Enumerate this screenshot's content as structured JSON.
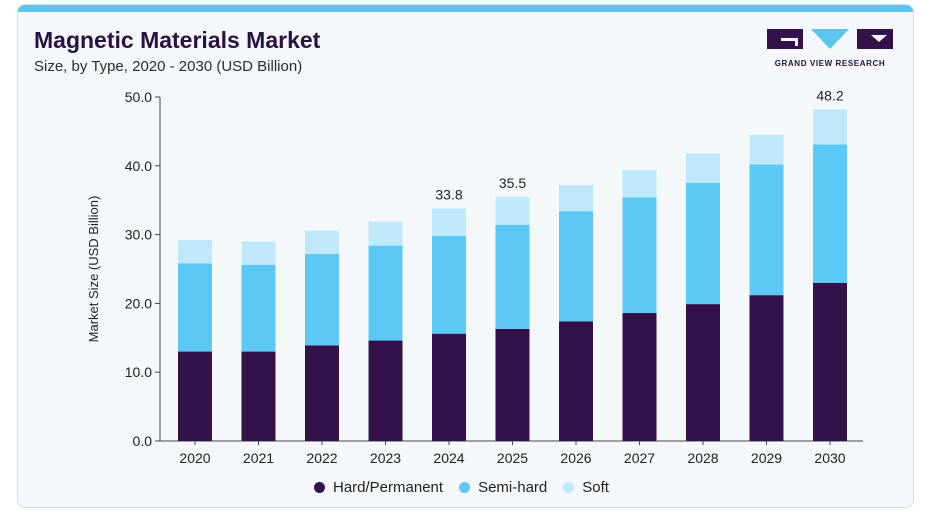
{
  "header": {
    "title": "Magnetic Materials Market",
    "subtitle": "Size, by Type, 2020 - 2030 (USD Billion)",
    "logo_text": "GRAND VIEW RESEARCH"
  },
  "colors": {
    "hard": "#33114b",
    "semi": "#5bc8f5",
    "soft": "#bfe8fb",
    "accent": "#5bc4ef"
  },
  "chart_data": {
    "type": "bar",
    "stacked": true,
    "categories": [
      "2020",
      "2021",
      "2022",
      "2023",
      "2024",
      "2025",
      "2026",
      "2027",
      "2028",
      "2029",
      "2030"
    ],
    "series": [
      {
        "name": "Hard/Permanent",
        "values": [
          13.0,
          13.0,
          13.9,
          14.6,
          15.6,
          16.3,
          17.4,
          18.6,
          19.9,
          21.2,
          23.0
        ]
      },
      {
        "name": "Semi-hard",
        "values": [
          12.8,
          12.6,
          13.3,
          13.8,
          14.2,
          15.1,
          16.0,
          16.8,
          17.6,
          19.0,
          20.1
        ]
      },
      {
        "name": "Soft",
        "values": [
          3.4,
          3.4,
          3.4,
          3.5,
          4.0,
          4.1,
          3.8,
          4.0,
          4.3,
          4.3,
          5.1
        ]
      }
    ],
    "totals_labels": [
      {
        "category": "2024",
        "text": "33.8"
      },
      {
        "category": "2025",
        "text": "35.5"
      },
      {
        "category": "2030",
        "text": "48.2"
      }
    ],
    "ylabel": "Market Size (USD Billion)",
    "xlabel": "",
    "ylim": [
      0,
      50
    ],
    "yticks": [
      "0.0",
      "10.0",
      "20.0",
      "30.0",
      "40.0",
      "50.0"
    ],
    "grid": false,
    "legend_position": "bottom"
  }
}
